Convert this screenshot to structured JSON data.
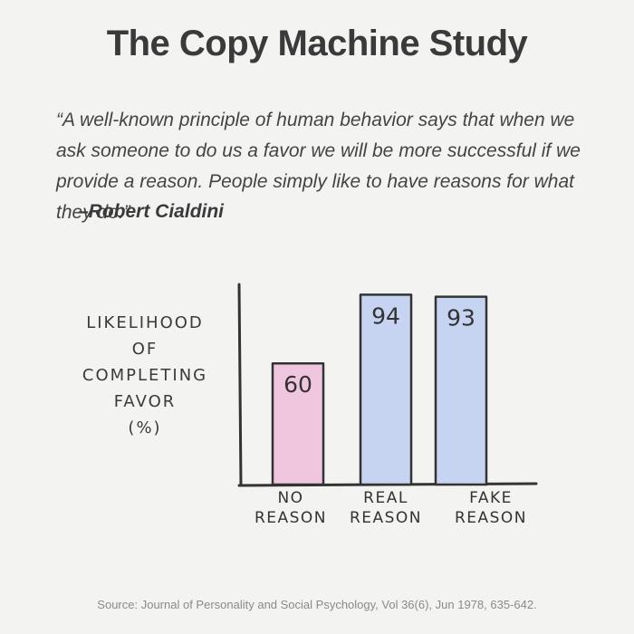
{
  "title": "The Copy Machine Study",
  "quote": "“A well-known principle of human behavior says that when we ask someone to do us a favor we will be more successful if we provide a reason. People simply like to have reasons for what they do.”",
  "author": "–Robert Cialdini",
  "source": "Source: Journal of Personality and Social Psychology, Vol 36(6), Jun 1978, 635-642.",
  "chart_data": {
    "type": "bar",
    "title": "",
    "ylabel_lines": [
      "LIKELIHOOD",
      "OF",
      "COMPLETING",
      "FAVOR",
      "(%)"
    ],
    "categories": [
      [
        "NO",
        "REASON"
      ],
      [
        "REAL",
        "REASON"
      ],
      [
        "FAKE",
        "REASON"
      ]
    ],
    "values": [
      60,
      94,
      93
    ],
    "data_labels": [
      "60",
      "94",
      "93"
    ],
    "colors": [
      "#f0c6de",
      "#c6d4f2",
      "#c6d4f2"
    ],
    "ylim": [
      0,
      100
    ],
    "grid": false
  }
}
